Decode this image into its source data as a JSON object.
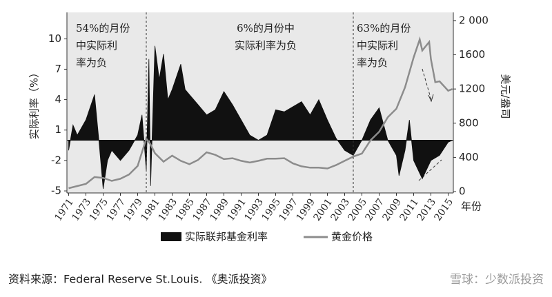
{
  "chart_data": {
    "type": "area-line",
    "ylabel": "实际利率（%）",
    "y2label": "美元/盎司",
    "xlabel": "年份",
    "xlim": [
      1970.8,
      2015.6
    ],
    "xticks": [
      1971,
      1973,
      1975,
      1977,
      1979,
      1981,
      1983,
      1985,
      1987,
      1989,
      1991,
      1993,
      1995,
      1997,
      1999,
      2001,
      2003,
      2005,
      2007,
      2009,
      2011,
      2013,
      2015
    ],
    "ylim": [
      -5.2,
      12.6
    ],
    "yticks": [
      -5,
      -2,
      1,
      4,
      7,
      10
    ],
    "y2lim": [
      -16,
      2096
    ],
    "y2ticks": [
      0,
      400,
      800,
      1200,
      1600,
      {
        "value": 2000,
        "label": "2 000"
      }
    ],
    "dividers": [
      1980,
      2004
    ],
    "annotations": [
      {
        "lines": [
          "54%的月份",
          "中实际利",
          "率为负"
        ]
      },
      {
        "lines": [
          "6%的月份中",
          "实际利率为负"
        ]
      },
      {
        "lines": [
          "63%的月份",
          "中实际利",
          "率为负"
        ]
      }
    ],
    "series": [
      {
        "name": "实际联邦基金利率",
        "color": "#111111",
        "axis": "y",
        "x": [
          1971,
          1971.5,
          1972,
          1973,
          1974,
          1974.5,
          1975,
          1975.5,
          1976,
          1977,
          1978,
          1979,
          1979.5,
          1980,
          1980.3,
          1980.5,
          1981,
          1981.5,
          1982,
          1982.5,
          1983,
          1984,
          1984.5,
          1985,
          1986,
          1987,
          1988,
          1989,
          1990,
          1991,
          1992,
          1993,
          1994,
          1995,
          1996,
          1997,
          1998,
          1999,
          2000,
          2001,
          2002,
          2003,
          2004,
          2005,
          2006,
          2007,
          2008,
          2009,
          2009.3,
          2010,
          2010.5,
          2011,
          2012,
          2013,
          2014,
          2015,
          2015.5
        ],
        "values": [
          -1,
          1.5,
          0.5,
          2,
          4.5,
          0,
          -4.8,
          -2,
          -1,
          -2,
          -1,
          0.5,
          2.5,
          -3,
          8,
          -4.5,
          9.3,
          6,
          8.5,
          4,
          5,
          7.5,
          5,
          4.5,
          3.5,
          2.5,
          3,
          4.8,
          3.5,
          2,
          0.5,
          0,
          0.5,
          3,
          2.8,
          3.3,
          3.8,
          2.5,
          4,
          2,
          0.2,
          -1,
          -1.5,
          0,
          2,
          3.2,
          0,
          -1.5,
          -3.5,
          -1,
          2,
          -2,
          -3.8,
          -2,
          -1.5,
          -0.2,
          0
        ]
      },
      {
        "name": "黄金价格",
        "color": "#8c8c8c",
        "axis": "y2",
        "x": [
          1971,
          1973,
          1974,
          1975,
          1976,
          1977,
          1978,
          1979,
          1980,
          1980.5,
          1981,
          1982,
          1983,
          1984,
          1985,
          1986,
          1987,
          1988,
          1989,
          1990,
          1991,
          1992,
          1993,
          1994,
          1995,
          1996,
          1997,
          1998,
          1999,
          2000,
          2001,
          2002,
          2003,
          2004,
          2005,
          2006,
          2007,
          2008,
          2009,
          2010,
          2011,
          2011.7,
          2012,
          2012.8,
          2013,
          2013.5,
          2014,
          2015,
          2015.5
        ],
        "values": [
          40,
          90,
          170,
          160,
          125,
          150,
          200,
          300,
          620,
          550,
          450,
          350,
          420,
          360,
          320,
          370,
          460,
          430,
          380,
          390,
          360,
          340,
          360,
          385,
          385,
          390,
          330,
          295,
          280,
          280,
          270,
          310,
          360,
          410,
          445,
          600,
          700,
          870,
          970,
          1220,
          1570,
          1780,
          1650,
          1750,
          1550,
          1280,
          1290,
          1180,
          1200
        ]
      }
    ],
    "source": "资料来源：Federal Reserve St.Louis. 《奥派投资》",
    "watermark": "雪球：少数派投资"
  }
}
